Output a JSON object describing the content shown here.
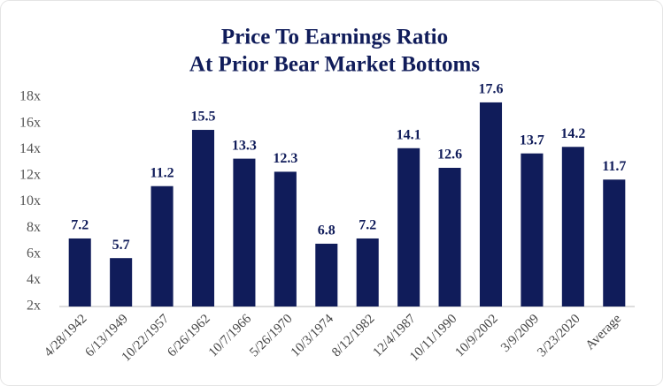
{
  "chart_data": {
    "type": "bar",
    "title": [
      "Price To Earnings Ratio",
      "At Prior Bear Market Bottoms"
    ],
    "categories": [
      "4/28/1942",
      "6/13/1949",
      "10/22/1957",
      "6/26/1962",
      "10/7/1966",
      "5/26/1970",
      "10/3/1974",
      "8/12/1982",
      "12/4/1987",
      "10/11/1990",
      "10/9/2002",
      "3/9/2009",
      "3/23/2020",
      "Average"
    ],
    "values": [
      7.2,
      5.7,
      11.2,
      15.5,
      13.3,
      12.3,
      6.8,
      7.2,
      14.1,
      12.6,
      17.6,
      13.7,
      14.2,
      11.7
    ],
    "color": "#101c5a",
    "ylim": [
      2,
      18
    ],
    "yticks": [
      {
        "value": 2,
        "label": "2x"
      },
      {
        "value": 4,
        "label": "4x"
      },
      {
        "value": 6,
        "label": "6x"
      },
      {
        "value": 8,
        "label": "8x"
      },
      {
        "value": 10,
        "label": "10x"
      },
      {
        "value": 12,
        "label": "12x"
      },
      {
        "value": 14,
        "label": "14x"
      },
      {
        "value": 16,
        "label": "16x"
      },
      {
        "value": 18,
        "label": "18x"
      }
    ],
    "grid": false
  }
}
